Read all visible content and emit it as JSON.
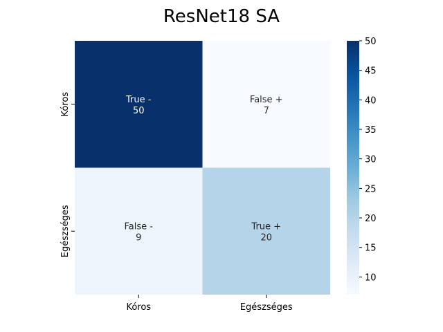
{
  "chart_data": {
    "type": "heatmap",
    "title": "ResNet18 SA",
    "xlabel": "",
    "ylabel": "",
    "x_categories": [
      "Kóros",
      "Egészséges"
    ],
    "y_categories": [
      "Kóros",
      "Egészséges"
    ],
    "cells": [
      [
        {
          "label": "True -",
          "value": 50
        },
        {
          "label": "False +",
          "value": 7
        }
      ],
      [
        {
          "label": "False -",
          "value": 9
        },
        {
          "label": "True +",
          "value": 20
        }
      ]
    ],
    "colorbar": {
      "min": 7,
      "max": 50,
      "ticks": [
        10,
        15,
        20,
        25,
        30,
        35,
        40,
        45,
        50
      ],
      "colormap": "Blues"
    },
    "grid": false,
    "legend": "colorbar-right"
  }
}
